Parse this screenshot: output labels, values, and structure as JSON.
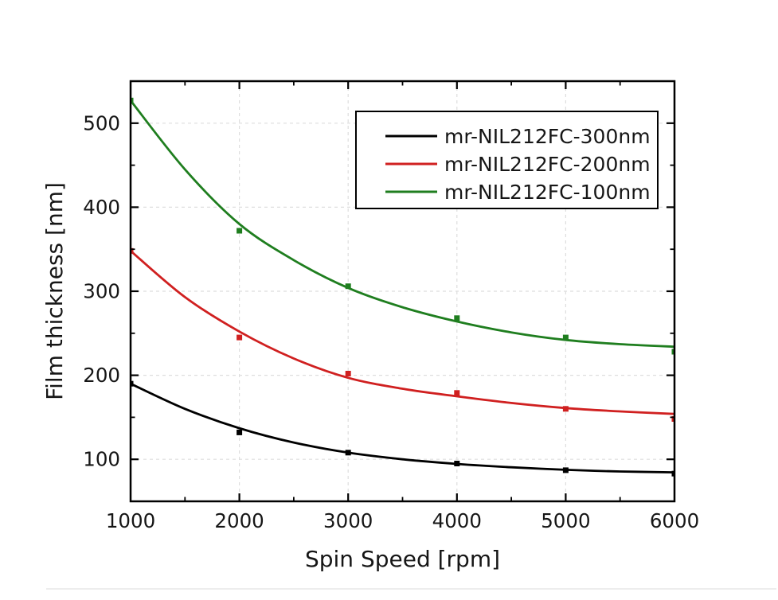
{
  "figure": {
    "xlabel": "Spin Speed [rpm]",
    "ylabel": "Film thickness [nm]"
  },
  "chart_data": {
    "type": "line",
    "title": "",
    "xlabel": "Spin Speed [rpm]",
    "ylabel": "Film thickness [nm]",
    "xlim": [
      1000,
      6000
    ],
    "ylim": [
      50,
      550
    ],
    "x_major_ticks": [
      1000,
      2000,
      3000,
      4000,
      5000,
      6000
    ],
    "x_minor_ticks": [
      1500,
      2500,
      3500,
      4500,
      5500
    ],
    "y_major_ticks": [
      100,
      200,
      300,
      400,
      500
    ],
    "y_minor_ticks": [
      150,
      250,
      350,
      450
    ],
    "grid": true,
    "grid_color": "#dedede",
    "legend_position": "top-right-inside",
    "series": [
      {
        "name": "mr-NIL212FC-300nm",
        "color": "#000000",
        "scatter": {
          "x": [
            1000,
            2000,
            3000,
            4000,
            5000,
            6000
          ],
          "y": [
            190,
            132,
            108,
            95,
            87,
            83
          ]
        },
        "curve": {
          "x": [
            1000,
            1500,
            2000,
            2500,
            3000,
            3500,
            4000,
            4500,
            5000,
            5500,
            6000
          ],
          "y": [
            190,
            160,
            137,
            120,
            108,
            100,
            94.5,
            90.5,
            87.5,
            85.5,
            84.5
          ]
        }
      },
      {
        "name": "mr-NIL212FC-200nm",
        "color": "#d02020",
        "scatter": {
          "x": [
            1000,
            2000,
            3000,
            4000,
            5000,
            6000
          ],
          "y": [
            348,
            245,
            202,
            179,
            160,
            148
          ]
        },
        "curve": {
          "x": [
            1000,
            1500,
            2000,
            2500,
            3000,
            3500,
            4000,
            4500,
            5000,
            5500,
            6000
          ],
          "y": [
            348,
            293,
            252,
            220,
            197,
            184,
            175,
            167,
            161,
            157,
            154
          ]
        }
      },
      {
        "name": "mr-NIL212FC-100nm",
        "color": "#1f7e1f",
        "scatter": {
          "x": [
            1000,
            2000,
            3000,
            4000,
            5000,
            6000
          ],
          "y": [
            527,
            372,
            306,
            268,
            245,
            228
          ]
        },
        "curve": {
          "x": [
            1000,
            1500,
            2000,
            2500,
            3000,
            3500,
            4000,
            4500,
            5000,
            5500,
            6000
          ],
          "y": [
            527,
            445,
            380,
            337,
            304,
            281,
            264,
            251,
            242,
            237,
            234
          ]
        }
      }
    ]
  }
}
